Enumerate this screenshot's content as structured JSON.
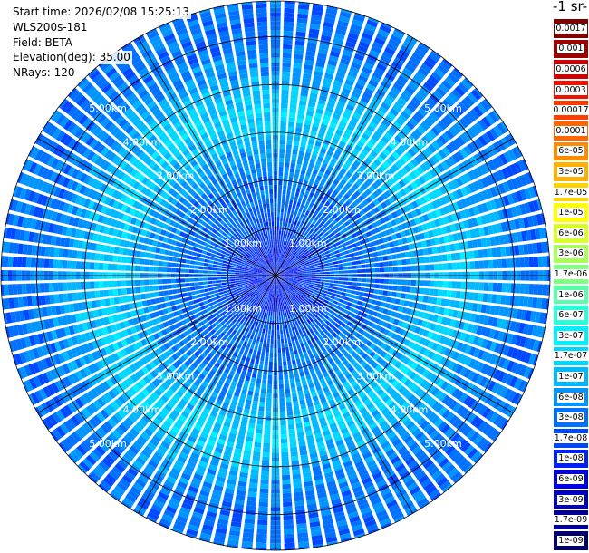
{
  "header": {
    "start_time": "Start time: 2026/02/08 15:25:13",
    "instrument": "WLS200s-181",
    "field": "Field: BETA",
    "elevation": "Elevation(deg): 35.00",
    "nrays": "NRays: 120"
  },
  "unit_label": "-1 sr-",
  "chart_data": {
    "type": "heatmap",
    "projection": "polar (PPI scan)",
    "field": "BETA",
    "elevation_deg": 35.0,
    "n_rays": 120,
    "range_rings_km": [
      1,
      2,
      3,
      4,
      5
    ],
    "ring_labels": [
      "1.00km",
      "2.00km",
      "3.00km",
      "4.00km",
      "5.00km"
    ],
    "max_range_km": 5.75,
    "colorscale": {
      "labels": [
        "0.0017",
        "0.001",
        "0.0006",
        "0.0003",
        "0.00017",
        "0.0001",
        "6e-05",
        "3e-05",
        "1.7e-05",
        "1e-05",
        "6e-06",
        "3e-06",
        "1.7e-06",
        "1e-06",
        "6e-07",
        "3e-07",
        "1.7e-07",
        "1e-07",
        "6e-08",
        "3e-08",
        "1.7e-08",
        "1e-08",
        "6e-09",
        "3e-09",
        "1.7e-09",
        "1e-09"
      ],
      "colors": [
        "#800000",
        "#a00000",
        "#cc0000",
        "#f01000",
        "#ff3c00",
        "#ff6600",
        "#ff8c00",
        "#ffb000",
        "#ffd200",
        "#ffff00",
        "#d8ff28",
        "#a8ff58",
        "#80ff80",
        "#58ffa8",
        "#28ffd8",
        "#00f0ff",
        "#00d8ff",
        "#00b8ff",
        "#0094ff",
        "#0070ff",
        "#0048ff",
        "#0020ff",
        "#0000e8",
        "#0000c0",
        "#000098",
        "#000070"
      ]
    },
    "radial_profile": [
      {
        "range_km": 0.0,
        "level_index": 21
      },
      {
        "range_km": 0.5,
        "level_index": 21
      },
      {
        "range_km": 1.0,
        "level_index": 20
      },
      {
        "range_km": 1.5,
        "level_index": 19
      },
      {
        "range_km": 2.0,
        "level_index": 19
      },
      {
        "range_km": 2.5,
        "level_index": 18
      },
      {
        "range_km": 3.0,
        "level_index": 17
      },
      {
        "range_km": 3.5,
        "level_index": 16
      },
      {
        "range_km": 4.0,
        "level_index": 17
      },
      {
        "range_km": 4.5,
        "level_index": 18
      },
      {
        "range_km": 5.0,
        "level_index": 19
      },
      {
        "range_km": 5.75,
        "level_index": 19
      }
    ]
  }
}
